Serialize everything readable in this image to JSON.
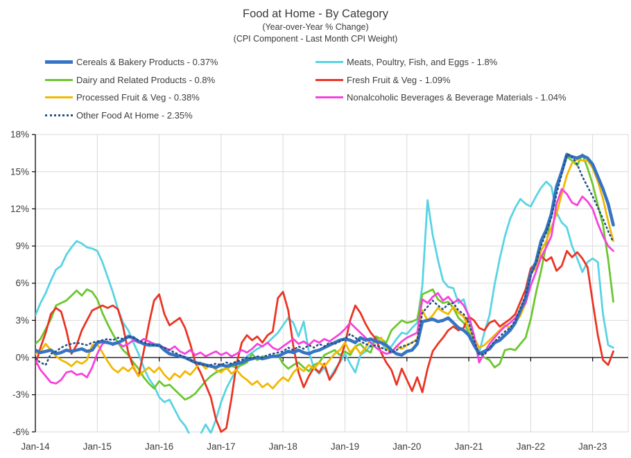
{
  "title": {
    "main": "Food at Home - By Category",
    "sub1": "(Year-over-Year % Change)",
    "sub2": "(CPI Component - Last Month CPI Weight)"
  },
  "chart_data": {
    "type": "line",
    "title": "Food at Home - By Category",
    "subtitle1": "(Year-over-Year % Change)",
    "subtitle2": "(CPI Component - Last Month CPI Weight)",
    "x_frequency": "monthly",
    "x_start": "Jan-14",
    "x_end": "May-23",
    "x_tick_labels": [
      "Jan-14",
      "Jan-15",
      "Jan-16",
      "Jan-17",
      "Jan-18",
      "Jan-19",
      "Jan-20",
      "Jan-21",
      "Jan-22",
      "Jan-23"
    ],
    "y_tick_labels": [
      "18%",
      "15%",
      "12%",
      "9%",
      "6%",
      "3%",
      "0%",
      "-3%",
      "-6%"
    ],
    "ylim": [
      -6,
      18
    ],
    "y_step": 3,
    "grid": true,
    "legend_position": "top-two-columns",
    "grid_color": "#d9d9d9",
    "axis_color": "#000000",
    "series": [
      {
        "name": "Cereals & Bakery Products",
        "legend_label": "Cereals & Bakery Products - 0.37%",
        "color": "#3574c4",
        "style": "solid",
        "thick": true,
        "values": [
          0.6,
          0.4,
          0.5,
          0.6,
          0.3,
          0.4,
          0.6,
          0.5,
          0.6,
          0.7,
          0.5,
          0.6,
          1.2,
          1.3,
          1.2,
          1.1,
          1.2,
          1.4,
          1.7,
          1.6,
          1.3,
          1.1,
          1.0,
          1.0,
          1.0,
          0.6,
          0.3,
          0.2,
          0.1,
          0.0,
          -0.2,
          -0.4,
          -0.5,
          -0.6,
          -0.7,
          -0.8,
          -0.6,
          -0.7,
          -0.6,
          -0.5,
          -0.4,
          -0.2,
          -0.1,
          0.0,
          -0.1,
          0.0,
          0.1,
          0.1,
          0.3,
          0.5,
          0.4,
          0.6,
          0.4,
          0.3,
          0.5,
          0.6,
          0.8,
          1.0,
          1.2,
          1.4,
          1.5,
          1.4,
          1.2,
          1.6,
          1.4,
          1.5,
          1.3,
          1.2,
          1.0,
          0.6,
          0.3,
          0.2,
          0.5,
          0.6,
          1.1,
          2.9,
          3.0,
          3.1,
          2.9,
          3.0,
          3.2,
          2.8,
          2.4,
          2.2,
          1.8,
          1.0,
          0.3,
          0.5,
          0.7,
          1.2,
          1.4,
          1.8,
          2.2,
          2.8,
          3.8,
          4.8,
          6.8,
          7.7,
          9.4,
          10.3,
          11.6,
          13.8,
          15.0,
          16.4,
          16.2,
          16.1,
          16.3,
          16.1,
          15.6,
          14.6,
          13.6,
          12.4,
          10.7
        ]
      },
      {
        "name": "Meats, Poultry, Fish, and Eggs",
        "legend_label": "Meats, Poultry, Fish, and Eggs - 1.8%",
        "color": "#57d4e2",
        "style": "solid",
        "thick": false,
        "values": [
          3.4,
          4.4,
          5.2,
          6.2,
          7.1,
          7.4,
          8.3,
          8.9,
          9.4,
          9.2,
          8.9,
          8.8,
          8.6,
          7.7,
          6.5,
          5.3,
          3.9,
          2.8,
          2.2,
          1.2,
          0.3,
          -0.8,
          -1.7,
          -2.3,
          -3.2,
          -3.6,
          -3.4,
          -4.2,
          -5.0,
          -5.5,
          -6.3,
          -6.5,
          -6.2,
          -5.4,
          -6.1,
          -5.0,
          -3.6,
          -2.5,
          -1.7,
          -1.0,
          -0.4,
          0.1,
          0.4,
          0.7,
          0.9,
          1.2,
          1.6,
          2.0,
          2.6,
          3.2,
          2.8,
          1.7,
          2.9,
          0.5,
          -0.9,
          -1.3,
          -0.8,
          -1.7,
          -1.0,
          -0.4,
          0.3,
          -0.5,
          -1.2,
          0.2,
          0.5,
          1.0,
          1.7,
          1.2,
          0.6,
          0.9,
          1.5,
          2.0,
          1.9,
          2.4,
          2.8,
          5.8,
          12.7,
          9.9,
          7.9,
          6.2,
          5.7,
          5.6,
          4.4,
          4.7,
          3.2,
          0.9,
          0.4,
          2.0,
          3.4,
          5.9,
          8.0,
          9.8,
          11.2,
          12.1,
          12.8,
          12.4,
          12.2,
          13.0,
          13.7,
          14.2,
          13.8,
          11.7,
          10.9,
          10.5,
          9.0,
          8.0,
          6.9,
          7.7,
          8.0,
          7.7,
          3.5,
          1.0,
          0.8
        ]
      },
      {
        "name": "Dairy and Related Products",
        "legend_label": "Dairy and Related Products - 0.8%",
        "color": "#6bc72e",
        "style": "solid",
        "thick": false,
        "values": [
          1.1,
          1.5,
          2.3,
          3.1,
          4.2,
          4.4,
          4.6,
          5.0,
          5.4,
          5.0,
          5.5,
          5.3,
          4.7,
          3.6,
          2.7,
          1.9,
          1.2,
          0.6,
          0.2,
          -0.4,
          -0.9,
          -1.6,
          -2.1,
          -2.5,
          -1.9,
          -2.3,
          -2.2,
          -2.6,
          -3.0,
          -3.4,
          -3.2,
          -2.9,
          -2.4,
          -1.9,
          -1.5,
          -1.2,
          -1.0,
          -0.9,
          -0.7,
          -0.8,
          -0.6,
          -0.4,
          0.3,
          -0.2,
          0.1,
          0.0,
          0.1,
          0.2,
          -0.5,
          -0.9,
          -0.6,
          -0.4,
          -0.8,
          -1.1,
          -0.6,
          -0.4,
          0.2,
          0.4,
          0.6,
          0.2,
          0.5,
          0.2,
          0.9,
          1.1,
          0.6,
          0.4,
          1.7,
          1.5,
          1.2,
          2.2,
          2.6,
          3.0,
          2.8,
          2.9,
          3.1,
          5.1,
          5.3,
          5.5,
          4.7,
          4.4,
          4.5,
          4.0,
          3.2,
          2.8,
          2.0,
          1.2,
          0.4,
          0.0,
          -0.2,
          -0.8,
          -0.5,
          0.6,
          0.7,
          0.6,
          1.1,
          1.6,
          3.1,
          5.2,
          7.0,
          9.1,
          11.8,
          13.5,
          14.9,
          16.2,
          15.9,
          15.5,
          16.4,
          15.3,
          14.0,
          12.3,
          10.7,
          7.9,
          4.5
        ]
      },
      {
        "name": "Fresh Fruit & Veg",
        "legend_label": "Fresh Fruit & Veg - 1.09%",
        "color": "#ea3423",
        "style": "solid",
        "thick": false,
        "values": [
          -0.6,
          0.8,
          2.0,
          3.5,
          4.0,
          3.7,
          2.2,
          0.3,
          1.0,
          2.2,
          3.0,
          3.8,
          4.0,
          4.2,
          4.0,
          4.2,
          3.9,
          2.5,
          0.4,
          -0.8,
          -1.5,
          0.5,
          2.7,
          4.6,
          5.1,
          3.5,
          2.6,
          2.9,
          3.2,
          2.4,
          1.1,
          -0.4,
          -1.2,
          -2.2,
          -3.2,
          -5.0,
          -6.0,
          -5.7,
          -3.3,
          -0.5,
          1.2,
          1.8,
          1.4,
          1.7,
          1.2,
          1.8,
          2.1,
          4.8,
          5.3,
          3.8,
          0.9,
          -1.2,
          -2.4,
          -1.5,
          -0.8,
          -1.2,
          -0.5,
          -1.8,
          -1.2,
          -0.3,
          1.1,
          3.0,
          4.2,
          3.6,
          2.7,
          2.0,
          1.5,
          0.4,
          -0.4,
          -1.0,
          -2.2,
          -0.9,
          -1.8,
          -2.7,
          -1.6,
          -2.8,
          -0.9,
          0.5,
          1.1,
          1.6,
          2.2,
          2.5,
          2.2,
          2.4,
          3.3,
          3.0,
          2.4,
          2.2,
          2.8,
          3.0,
          2.5,
          2.8,
          3.1,
          3.5,
          4.5,
          5.5,
          7.2,
          7.6,
          8.2,
          7.8,
          8.1,
          7.0,
          7.4,
          8.6,
          8.1,
          8.5,
          8.0,
          7.3,
          4.5,
          1.8,
          -0.2,
          -0.6,
          0.5
        ]
      },
      {
        "name": "Processed Fruit & Veg",
        "legend_label": "Processed Fruit & Veg - 0.38%",
        "color": "#f2b800",
        "style": "solid",
        "thick": false,
        "values": [
          0.3,
          0.5,
          1.1,
          0.6,
          0.1,
          -0.2,
          -0.4,
          -0.7,
          -0.3,
          -0.5,
          -0.2,
          1.0,
          1.1,
          0.4,
          -0.3,
          -0.9,
          -1.2,
          -0.8,
          -1.1,
          -0.7,
          -1.5,
          -1.1,
          -0.8,
          -1.2,
          -0.8,
          -1.4,
          -1.8,
          -1.3,
          -1.6,
          -1.1,
          -1.4,
          -0.9,
          -0.4,
          -0.9,
          -0.6,
          -1.0,
          -1.2,
          -0.8,
          -1.3,
          -1.0,
          -1.5,
          -1.8,
          -2.2,
          -1.9,
          -2.4,
          -2.1,
          -2.5,
          -2.0,
          -1.6,
          -1.9,
          -1.2,
          -0.8,
          -1.1,
          -0.6,
          -0.9,
          -0.4,
          -0.7,
          -0.2,
          0.3,
          0.6,
          1.2,
          0.4,
          0.9,
          0.3,
          0.8,
          1.5,
          1.2,
          1.6,
          0.8,
          0.4,
          0.9,
          0.7,
          1.0,
          1.2,
          1.5,
          3.8,
          3.0,
          3.4,
          4.0,
          3.7,
          3.5,
          4.1,
          3.6,
          3.3,
          2.4,
          1.6,
          0.8,
          1.0,
          1.4,
          1.8,
          2.2,
          2.6,
          2.4,
          2.8,
          3.4,
          4.4,
          6.8,
          7.2,
          8.6,
          9.4,
          10.5,
          11.6,
          13.2,
          14.7,
          15.7,
          16.0,
          15.9,
          15.9,
          15.3,
          14.2,
          12.8,
          11.0,
          9.4
        ]
      },
      {
        "name": "Nonalcoholic Beverages & Beverage Materials",
        "legend_label": "Nonalcoholic Beverages & Beverage Materials - 1.04%",
        "color": "#f542dc",
        "style": "solid",
        "thick": false,
        "values": [
          -0.2,
          -1.0,
          -1.5,
          -2.0,
          -2.1,
          -1.8,
          -1.2,
          -1.1,
          -1.4,
          -1.3,
          -1.6,
          -0.8,
          0.3,
          1.1,
          1.3,
          1.0,
          1.2,
          0.9,
          1.1,
          1.4,
          1.2,
          1.5,
          1.3,
          1.1,
          1.0,
          0.8,
          0.6,
          0.9,
          0.5,
          0.3,
          0.6,
          0.2,
          0.4,
          0.1,
          0.3,
          0.5,
          0.2,
          0.4,
          0.1,
          0.3,
          0.6,
          0.4,
          0.7,
          1.1,
          0.9,
          1.2,
          0.8,
          0.6,
          0.9,
          1.2,
          1.5,
          1.1,
          1.3,
          1.0,
          1.4,
          1.2,
          1.5,
          1.3,
          1.6,
          1.9,
          2.3,
          2.8,
          2.4,
          2.0,
          1.6,
          1.2,
          0.8,
          0.5,
          0.3,
          0.4,
          0.9,
          1.3,
          1.6,
          1.8,
          2.0,
          4.7,
          4.4,
          4.9,
          5.2,
          4.6,
          4.9,
          4.4,
          4.7,
          4.2,
          3.4,
          1.8,
          -0.4,
          0.4,
          1.1,
          1.6,
          2.1,
          2.5,
          2.8,
          3.2,
          3.8,
          4.4,
          5.8,
          6.9,
          8.1,
          8.9,
          9.8,
          12.4,
          13.6,
          13.2,
          12.5,
          12.3,
          13.0,
          12.6,
          12.0,
          10.8,
          9.8,
          9.0,
          8.6
        ]
      },
      {
        "name": "Other Food At Home",
        "legend_label": "Other Food At Home - 2.35%",
        "color": "#264f7e",
        "style": "dotted",
        "thick": false,
        "values": [
          -0.1,
          -0.4,
          -0.6,
          0.3,
          0.5,
          0.8,
          1.0,
          1.1,
          1.2,
          1.1,
          1.0,
          1.2,
          1.3,
          1.4,
          1.5,
          1.4,
          1.6,
          1.5,
          1.7,
          1.6,
          1.4,
          1.2,
          1.1,
          1.0,
          0.9,
          0.8,
          0.6,
          0.4,
          0.2,
          0.0,
          -0.2,
          -0.4,
          -0.5,
          -0.7,
          -0.6,
          -0.5,
          -0.6,
          -0.4,
          -0.5,
          -0.3,
          -0.2,
          0.0,
          -0.1,
          0.1,
          0.0,
          0.2,
          0.3,
          0.4,
          0.5,
          0.8,
          0.6,
          0.9,
          0.7,
          1.0,
          0.8,
          1.1,
          0.9,
          1.2,
          1.1,
          1.3,
          1.5,
          1.9,
          1.6,
          1.3,
          1.1,
          0.9,
          1.0,
          0.8,
          0.6,
          0.4,
          0.6,
          0.9,
          1.0,
          1.2,
          1.4,
          3.6,
          4.1,
          4.6,
          4.2,
          3.9,
          4.3,
          4.4,
          3.8,
          3.5,
          2.8,
          1.4,
          0.3,
          0.2,
          0.8,
          1.3,
          1.7,
          2.1,
          2.4,
          3.0,
          4.0,
          5.0,
          6.6,
          7.6,
          9.0,
          10.1,
          11.3,
          13.2,
          14.8,
          16.4,
          16.2,
          15.6,
          14.6,
          13.8,
          13.0,
          12.1,
          11.2,
          10.2,
          9.3
        ]
      }
    ]
  }
}
